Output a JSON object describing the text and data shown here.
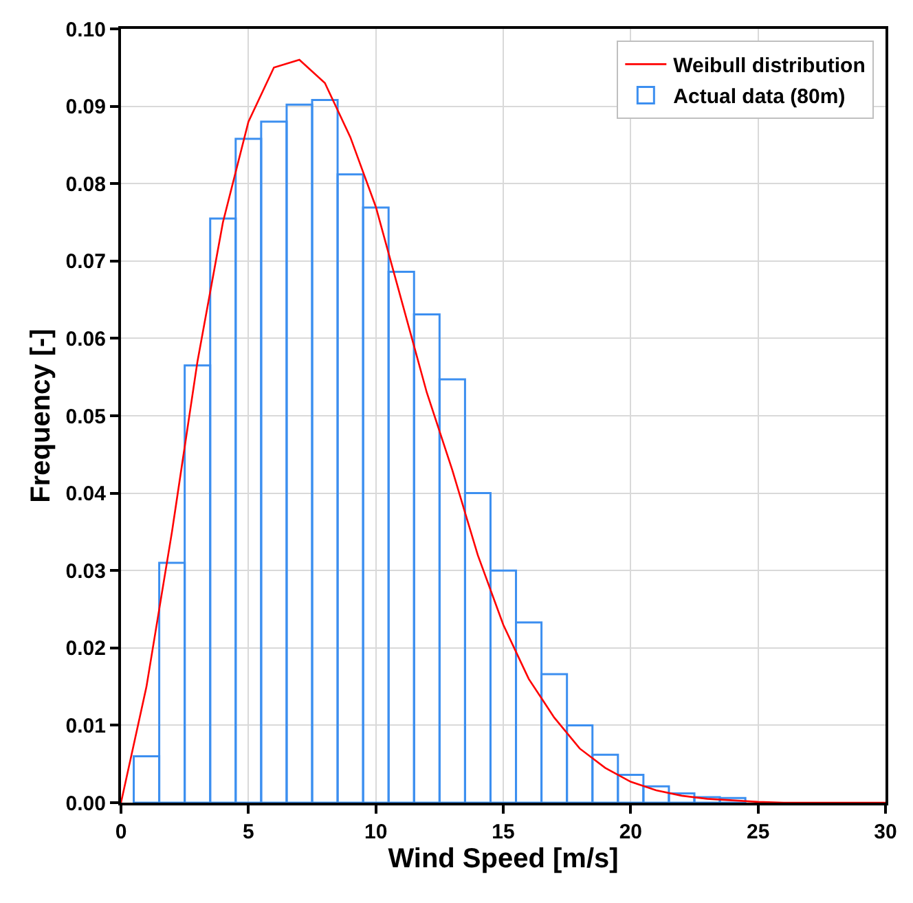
{
  "chart_data": {
    "type": "histogram",
    "xlabel": "Wind Speed [m/s]",
    "ylabel": "Frequency [-]",
    "bins": [
      0.5,
      1.5,
      2.5,
      3.5,
      4.5,
      5.5,
      6.5,
      7.5,
      8.5,
      9.5,
      10.5,
      11.5,
      12.5,
      13.5,
      14.5,
      15.5,
      16.5,
      17.5,
      18.5,
      19.5,
      20.5,
      21.5,
      22.5,
      23.5,
      24.5
    ],
    "series": [
      {
        "name": "Weibull distribution",
        "type": "line",
        "color": "#ff0000",
        "x": [
          0,
          1,
          2,
          3,
          4,
          5,
          6,
          7,
          8,
          9,
          10,
          11,
          12,
          13,
          14,
          15,
          16,
          17,
          18,
          19,
          20,
          21,
          22,
          23,
          24,
          25,
          26,
          28,
          30
        ],
        "values": [
          0,
          0.015,
          0.035,
          0.057,
          0.075,
          0.088,
          0.095,
          0.096,
          0.093,
          0.086,
          0.077,
          0.065,
          0.053,
          0.043,
          0.032,
          0.023,
          0.016,
          0.011,
          0.007,
          0.0045,
          0.0027,
          0.0016,
          0.0009,
          0.0005,
          0.0003,
          0.0001,
          0,
          0,
          0
        ]
      },
      {
        "name": "Actual data (80m)",
        "color": "#3c8ff0",
        "values": [
          0.006,
          0.031,
          0.0565,
          0.0755,
          0.0858,
          0.088,
          0.0902,
          0.0908,
          0.0812,
          0.0769,
          0.0686,
          0.0631,
          0.0547,
          0.04,
          0.03,
          0.0233,
          0.0166,
          0.01,
          0.0062,
          0.0036,
          0.0021,
          0.0012,
          0.0007,
          0.0006
        ]
      }
    ],
    "xlim": [
      0,
      30
    ],
    "xticks": [
      0,
      5,
      10,
      15,
      20,
      25,
      30
    ],
    "ylim": [
      0,
      0.1
    ],
    "yticks": [
      {
        "value": 0,
        "label": "0.00"
      },
      {
        "value": 0.01,
        "label": "0.01"
      },
      {
        "value": 0.02,
        "label": "0.02"
      },
      {
        "value": 0.03,
        "label": "0.03"
      },
      {
        "value": 0.04,
        "label": "0.04"
      },
      {
        "value": 0.05,
        "label": "0.05"
      },
      {
        "value": 0.06,
        "label": "0.06"
      },
      {
        "value": 0.07,
        "label": "0.07"
      },
      {
        "value": 0.08,
        "label": "0.08"
      },
      {
        "value": 0.09,
        "label": "0.09"
      },
      {
        "value": 0.1,
        "label": "0.10"
      }
    ],
    "grid": true,
    "legend": "top right"
  }
}
